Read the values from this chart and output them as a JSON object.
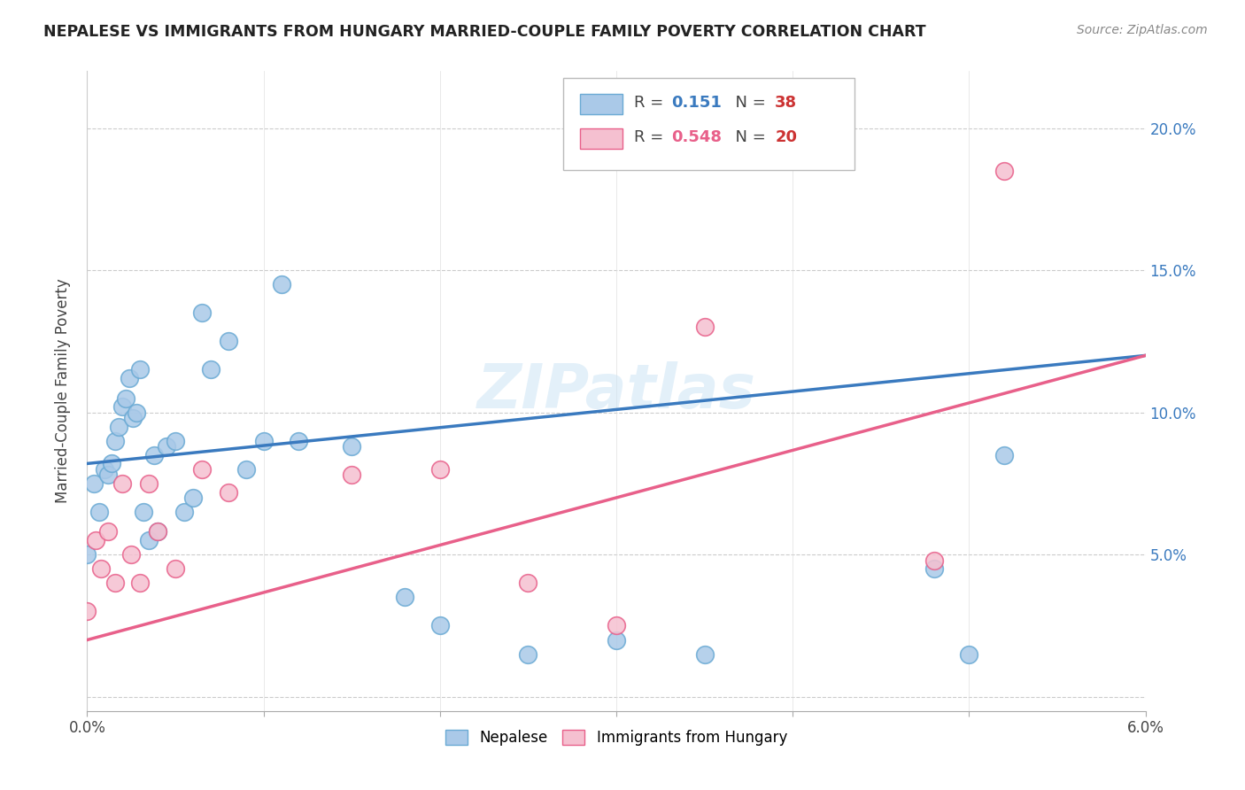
{
  "title": "NEPALESE VS IMMIGRANTS FROM HUNGARY MARRIED-COUPLE FAMILY POVERTY CORRELATION CHART",
  "source": "Source: ZipAtlas.com",
  "ylabel": "Married-Couple Family Poverty",
  "xlim": [
    0.0,
    6.0
  ],
  "ylim": [
    -0.5,
    22.0
  ],
  "blue_color": "#aac9e8",
  "blue_edge_color": "#6aaad4",
  "pink_color": "#f5c0d0",
  "pink_edge_color": "#e8608a",
  "blue_line_color": "#3a7abf",
  "pink_line_color": "#e8608a",
  "watermark": "ZIPatlas",
  "nepalese_x": [
    0.0,
    0.04,
    0.07,
    0.1,
    0.12,
    0.14,
    0.16,
    0.18,
    0.2,
    0.22,
    0.24,
    0.26,
    0.28,
    0.3,
    0.32,
    0.35,
    0.38,
    0.4,
    0.45,
    0.5,
    0.55,
    0.6,
    0.65,
    0.7,
    0.8,
    0.9,
    1.0,
    1.1,
    1.2,
    1.5,
    1.8,
    2.0,
    2.5,
    3.0,
    3.5,
    4.8,
    5.0,
    5.2
  ],
  "nepalese_y": [
    5.0,
    7.5,
    6.5,
    8.0,
    7.8,
    8.2,
    9.0,
    9.5,
    10.2,
    10.5,
    11.2,
    9.8,
    10.0,
    11.5,
    6.5,
    5.5,
    8.5,
    5.8,
    8.8,
    9.0,
    6.5,
    7.0,
    13.5,
    11.5,
    12.5,
    8.0,
    9.0,
    14.5,
    9.0,
    8.8,
    3.5,
    2.5,
    1.5,
    2.0,
    1.5,
    4.5,
    1.5,
    8.5
  ],
  "hungary_x": [
    0.0,
    0.05,
    0.08,
    0.12,
    0.16,
    0.2,
    0.25,
    0.3,
    0.35,
    0.4,
    0.5,
    0.65,
    0.8,
    1.5,
    2.0,
    2.5,
    3.0,
    3.5,
    4.8,
    5.2
  ],
  "hungary_y": [
    3.0,
    5.5,
    4.5,
    5.8,
    4.0,
    7.5,
    5.0,
    4.0,
    7.5,
    5.8,
    4.5,
    8.0,
    7.2,
    7.8,
    8.0,
    4.0,
    2.5,
    13.0,
    4.8,
    18.5
  ]
}
